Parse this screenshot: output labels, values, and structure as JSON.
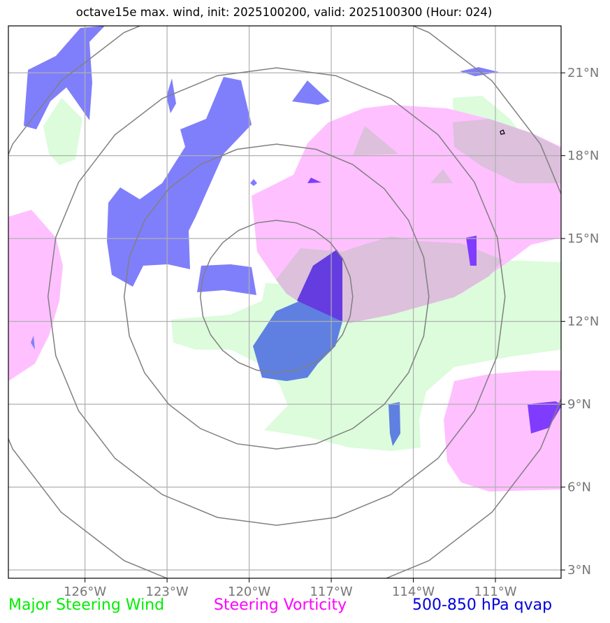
{
  "title": "octave15e max. wind, init: 2025100200, valid: 2025100300 (Hour: 024)",
  "map": {
    "lon_labels": [
      "126°W",
      "123°W",
      "120°W",
      "117°W",
      "114°W",
      "111°W"
    ],
    "lat_labels": [
      "21°N",
      "18°N",
      "15°N",
      "12°N",
      "9°N",
      "6°N",
      "3°N"
    ],
    "lon_range": [
      -128.8,
      -108.6
    ],
    "lat_range": [
      2.7,
      22.7
    ],
    "storm_center": {
      "lon": -119.0,
      "lat": 12.9
    },
    "range_rings": 4,
    "gridlines": true,
    "colors": {
      "steering_wind": "#dcfcdc",
      "steering_vorticity": "#ffc0ff",
      "overlap": "#dcc0dc",
      "qvap": "#7f7ffb",
      "qvap_on_wind": "#5f80e0",
      "qvap_on_vorticity": "#643ce0",
      "qvap_on_pink": "#7f3cff",
      "rings": "#808080",
      "grid": "#b0b0b0"
    }
  },
  "legend": {
    "wind": "Major Steering Wind",
    "vorticity": "Steering Vorticity",
    "qvap": "500-850 hPa qvap"
  }
}
